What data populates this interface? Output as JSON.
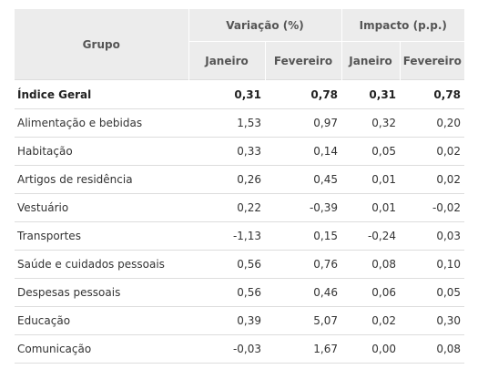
{
  "table": {
    "group_header": "Grupo",
    "variation_header": "Variação (%)",
    "impact_header": "Impacto (p.p.)",
    "sub_headers": [
      "Janeiro",
      "Fevereiro",
      "Janeiro",
      "Fevereiro"
    ],
    "rows": [
      {
        "name": "Índice Geral",
        "var_jan": "0,31",
        "var_fev": "0,78",
        "imp_jan": "0,31",
        "imp_fev": "0,78"
      },
      {
        "name": "Alimentação e bebidas",
        "var_jan": "1,53",
        "var_fev": "0,97",
        "imp_jan": "0,32",
        "imp_fev": "0,20"
      },
      {
        "name": "Habitação",
        "var_jan": "0,33",
        "var_fev": "0,14",
        "imp_jan": "0,05",
        "imp_fev": "0,02"
      },
      {
        "name": "Artigos de residência",
        "var_jan": "0,26",
        "var_fev": "0,45",
        "imp_jan": "0,01",
        "imp_fev": "0,02"
      },
      {
        "name": "Vestuário",
        "var_jan": "0,22",
        "var_fev": "-0,39",
        "imp_jan": "0,01",
        "imp_fev": "-0,02"
      },
      {
        "name": "Transportes",
        "var_jan": "-1,13",
        "var_fev": "0,15",
        "imp_jan": "-0,24",
        "imp_fev": "0,03"
      },
      {
        "name": "Saúde e cuidados pessoais",
        "var_jan": "0,56",
        "var_fev": "0,76",
        "imp_jan": "0,08",
        "imp_fev": "0,10"
      },
      {
        "name": "Despesas pessoais",
        "var_jan": "0,56",
        "var_fev": "0,46",
        "imp_jan": "0,06",
        "imp_fev": "0,05"
      },
      {
        "name": "Educação",
        "var_jan": "0,39",
        "var_fev": "5,07",
        "imp_jan": "0,02",
        "imp_fev": "0,30"
      },
      {
        "name": "Comunicação",
        "var_jan": "-0,03",
        "var_fev": "1,67",
        "imp_jan": "0,00",
        "imp_fev": "0,08"
      }
    ]
  }
}
